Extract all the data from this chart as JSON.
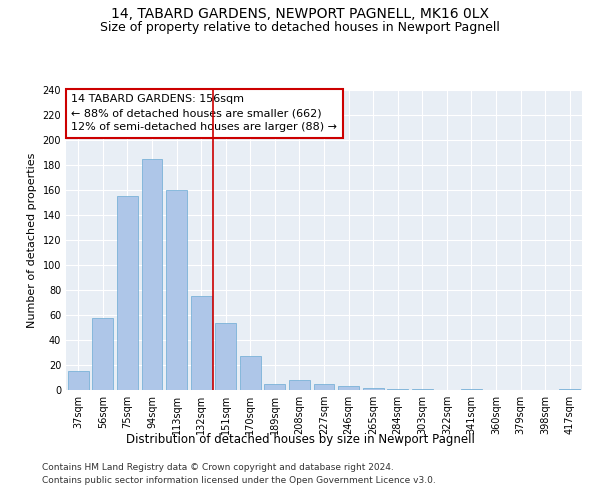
{
  "title_line1": "14, TABARD GARDENS, NEWPORT PAGNELL, MK16 0LX",
  "title_line2": "Size of property relative to detached houses in Newport Pagnell",
  "xlabel": "Distribution of detached houses by size in Newport Pagnell",
  "ylabel": "Number of detached properties",
  "categories": [
    "37sqm",
    "56sqm",
    "75sqm",
    "94sqm",
    "113sqm",
    "132sqm",
    "151sqm",
    "170sqm",
    "189sqm",
    "208sqm",
    "227sqm",
    "246sqm",
    "265sqm",
    "284sqm",
    "303sqm",
    "322sqm",
    "341sqm",
    "360sqm",
    "379sqm",
    "398sqm",
    "417sqm"
  ],
  "values": [
    15,
    58,
    155,
    185,
    160,
    75,
    54,
    27,
    5,
    8,
    5,
    3,
    2,
    1,
    1,
    0,
    1,
    0,
    0,
    0,
    1
  ],
  "bar_color": "#aec6e8",
  "bar_edge_color": "#6aaad4",
  "vline_x": 5.5,
  "vline_color": "#cc0000",
  "annotation_text": "14 TABARD GARDENS: 156sqm\n← 88% of detached houses are smaller (662)\n12% of semi-detached houses are larger (88) →",
  "annotation_box_color": "#cc0000",
  "ylim": [
    0,
    240
  ],
  "yticks": [
    0,
    20,
    40,
    60,
    80,
    100,
    120,
    140,
    160,
    180,
    200,
    220,
    240
  ],
  "background_color": "#e8eef5",
  "grid_color": "#ffffff",
  "footer_line1": "Contains HM Land Registry data © Crown copyright and database right 2024.",
  "footer_line2": "Contains public sector information licensed under the Open Government Licence v3.0.",
  "title_fontsize": 10,
  "subtitle_fontsize": 9,
  "xlabel_fontsize": 8.5,
  "ylabel_fontsize": 8,
  "tick_fontsize": 7,
  "annotation_fontsize": 8,
  "footer_fontsize": 6.5
}
